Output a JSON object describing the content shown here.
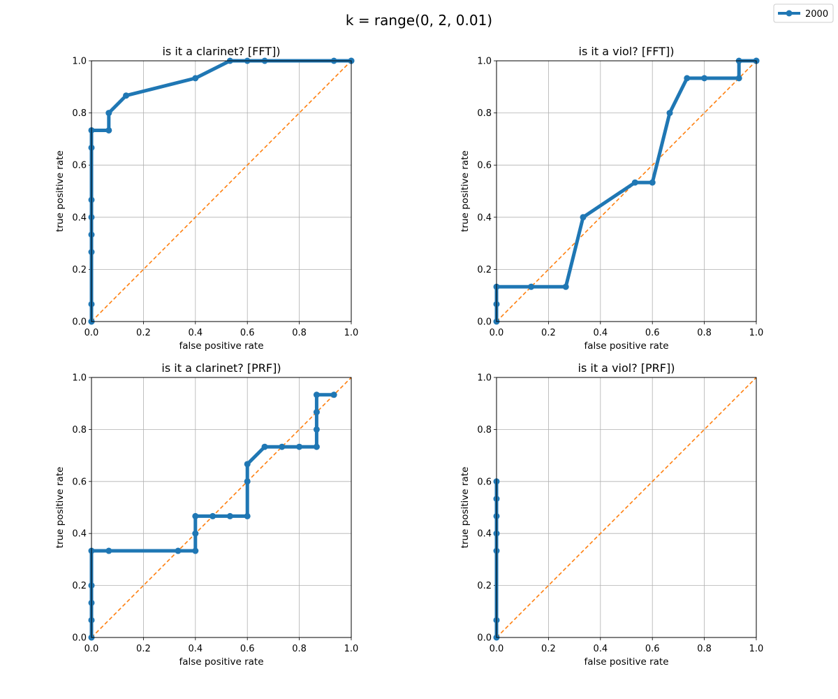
{
  "chart_data": {
    "type": "line",
    "suptitle": "k = range(0, 2, 0.01)",
    "legend": {
      "placement": "top-right",
      "entries": [
        {
          "label": "2000",
          "color": "#1f77b4"
        }
      ]
    },
    "colors": {
      "series": "#1f77b4",
      "diagonal": "#ff7f0e",
      "grid": "#b0b0b0"
    },
    "grid": true,
    "panels": [
      {
        "title": "is it a clarinet? [FFT])",
        "xlabel": "false positive rate",
        "ylabel": "true positive rate",
        "xlim": [
          0,
          1
        ],
        "ylim": [
          0,
          1
        ],
        "xticks": [
          "0.0",
          "0.2",
          "0.4",
          "0.6",
          "0.8",
          "1.0"
        ],
        "yticks": [
          "0.0",
          "0.2",
          "0.4",
          "0.6",
          "0.8",
          "1.0"
        ],
        "series": [
          {
            "name": "2000",
            "x": [
              0.0,
              0.0,
              0.0,
              0.0,
              0.0,
              0.0,
              0.0,
              0.0,
              0.0,
              0.0667,
              0.0667,
              0.1333,
              0.4,
              0.5333,
              0.6,
              0.6667,
              0.9333,
              1.0,
              1.0
            ],
            "y": [
              0.0,
              0.0,
              0.0667,
              0.2667,
              0.3333,
              0.4,
              0.4667,
              0.6667,
              0.7333,
              0.7333,
              0.8,
              0.8667,
              0.9333,
              1.0,
              1.0,
              1.0,
              1.0,
              1.0,
              1.0
            ]
          }
        ]
      },
      {
        "title": "is it a viol? [FFT])",
        "xlabel": "false positive rate",
        "ylabel": "true positive rate",
        "xlim": [
          0,
          1
        ],
        "ylim": [
          0,
          1
        ],
        "xticks": [
          "0.0",
          "0.2",
          "0.4",
          "0.6",
          "0.8",
          "1.0"
        ],
        "yticks": [
          "0.0",
          "0.2",
          "0.4",
          "0.6",
          "0.8",
          "1.0"
        ],
        "series": [
          {
            "name": "2000",
            "x": [
              0.0,
              0.0,
              0.0,
              0.1333,
              0.2667,
              0.3333,
              0.5333,
              0.6,
              0.6667,
              0.7333,
              0.8,
              0.9333,
              0.9333,
              1.0,
              1.0
            ],
            "y": [
              0.0,
              0.0667,
              0.1333,
              0.1333,
              0.1333,
              0.4,
              0.5333,
              0.5333,
              0.8,
              0.9333,
              0.9333,
              0.9333,
              1.0,
              1.0,
              1.0
            ]
          }
        ]
      },
      {
        "title": "is it a clarinet? [PRF])",
        "xlabel": "false positive rate",
        "ylabel": "true positive rate",
        "xlim": [
          0,
          1
        ],
        "ylim": [
          0,
          1
        ],
        "xticks": [
          "0.0",
          "0.2",
          "0.4",
          "0.6",
          "0.8",
          "1.0"
        ],
        "yticks": [
          "0.0",
          "0.2",
          "0.4",
          "0.6",
          "0.8",
          "1.0"
        ],
        "series": [
          {
            "name": "2000",
            "x": [
              0.0,
              0.0,
              0.0,
              0.0,
              0.0,
              0.0667,
              0.3333,
              0.4,
              0.4,
              0.4,
              0.4667,
              0.5333,
              0.6,
              0.6,
              0.6,
              0.6667,
              0.7333,
              0.8,
              0.8667,
              0.8667,
              0.8667,
              0.8667,
              0.9333
            ],
            "y": [
              0.0,
              0.0667,
              0.1333,
              0.2,
              0.3333,
              0.3333,
              0.3333,
              0.3333,
              0.4,
              0.4667,
              0.4667,
              0.4667,
              0.4667,
              0.6,
              0.6667,
              0.7333,
              0.7333,
              0.7333,
              0.7333,
              0.8,
              0.8667,
              0.9333,
              0.9333
            ]
          }
        ]
      },
      {
        "title": "is it a viol? [PRF])",
        "xlabel": "false positive rate",
        "ylabel": "true positive rate",
        "xlim": [
          0,
          1
        ],
        "ylim": [
          0,
          1
        ],
        "xticks": [
          "0.0",
          "0.2",
          "0.4",
          "0.6",
          "0.8",
          "1.0"
        ],
        "yticks": [
          "0.0",
          "0.2",
          "0.4",
          "0.6",
          "0.8",
          "1.0"
        ],
        "series": [
          {
            "name": "2000",
            "x": [
              0.0,
              0.0,
              0.0,
              0.0,
              0.0,
              0.0,
              0.0
            ],
            "y": [
              0.0,
              0.0667,
              0.3333,
              0.4,
              0.4667,
              0.5333,
              0.6
            ]
          }
        ]
      }
    ]
  }
}
